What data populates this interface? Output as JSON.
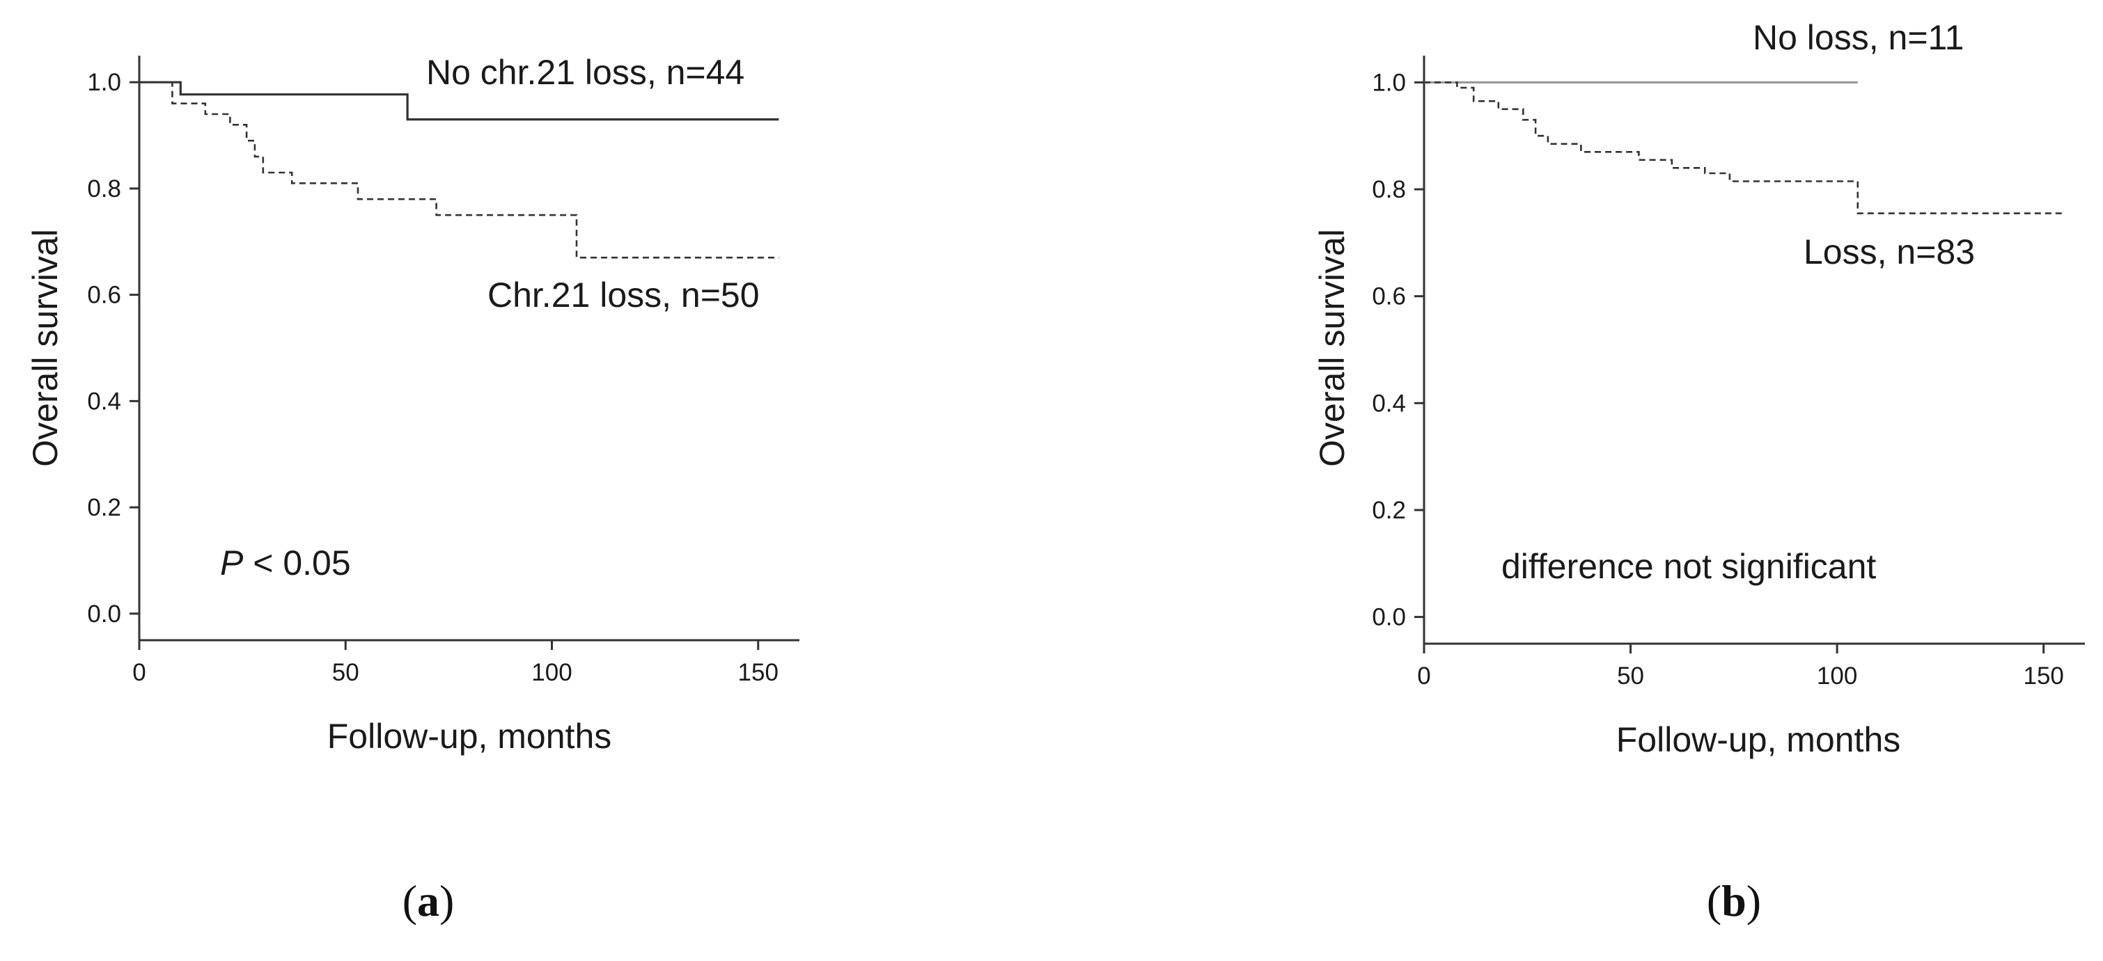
{
  "chart_data": [
    {
      "type": "line",
      "subtype": "kaplan-meier",
      "panel_label": "a",
      "xlabel": "Follow-up,  months",
      "ylabel": "Overall survival",
      "xlim": [
        0,
        160
      ],
      "ylim": [
        -0.05,
        1.05
      ],
      "xticks": [
        "0",
        "50",
        "100",
        "150"
      ],
      "yticks": [
        "0.0",
        "0.2",
        "0.4",
        "0.6",
        "0.8",
        "1.0"
      ],
      "series": [
        {
          "name": "No chr.21 loss, n=44",
          "style": "solid",
          "color": "#333333",
          "x": [
            0,
            10,
            10,
            65,
            65,
            155
          ],
          "y": [
            1.0,
            1.0,
            0.977,
            0.977,
            0.93,
            0.93
          ]
        },
        {
          "name": "Chr.21 loss, n=50",
          "style": "dashed",
          "color": "#333333",
          "x": [
            0,
            8,
            8,
            16,
            16,
            22,
            22,
            26,
            26,
            28,
            28,
            30,
            30,
            37,
            37,
            53,
            53,
            72,
            72,
            106,
            106,
            155
          ],
          "y": [
            1.0,
            1.0,
            0.96,
            0.96,
            0.94,
            0.94,
            0.92,
            0.92,
            0.89,
            0.89,
            0.86,
            0.86,
            0.83,
            0.83,
            0.81,
            0.81,
            0.78,
            0.78,
            0.75,
            0.75,
            0.67,
            0.67
          ]
        }
      ],
      "annotations": {
        "p_label": "P",
        "p_value": " < 0.05"
      }
    },
    {
      "type": "line",
      "subtype": "kaplan-meier",
      "panel_label": "b",
      "xlabel": "Follow-up,  months",
      "ylabel": "Overall survival",
      "xlim": [
        0,
        160
      ],
      "ylim": [
        -0.05,
        1.05
      ],
      "xticks": [
        "0",
        "50",
        "100",
        "150"
      ],
      "yticks": [
        "0.0",
        "0.2",
        "0.4",
        "0.6",
        "0.8",
        "1.0"
      ],
      "series": [
        {
          "name": "No loss, n=11",
          "style": "solid",
          "color": "#9a9a9a",
          "x": [
            0,
            105
          ],
          "y": [
            1.0,
            1.0
          ]
        },
        {
          "name": "Loss, n=83",
          "style": "dashed",
          "color": "#333333",
          "x": [
            0,
            8,
            8,
            12,
            12,
            18,
            18,
            24,
            24,
            27,
            27,
            30,
            30,
            38,
            38,
            52,
            52,
            60,
            60,
            68,
            68,
            74,
            74,
            105,
            105,
            155
          ],
          "y": [
            1.0,
            1.0,
            0.99,
            0.99,
            0.965,
            0.965,
            0.95,
            0.95,
            0.93,
            0.93,
            0.9,
            0.9,
            0.885,
            0.885,
            0.87,
            0.87,
            0.855,
            0.855,
            0.84,
            0.84,
            0.83,
            0.83,
            0.815,
            0.815,
            0.755,
            0.755
          ]
        }
      ],
      "annotations": {
        "significance": "difference not significant"
      }
    }
  ]
}
